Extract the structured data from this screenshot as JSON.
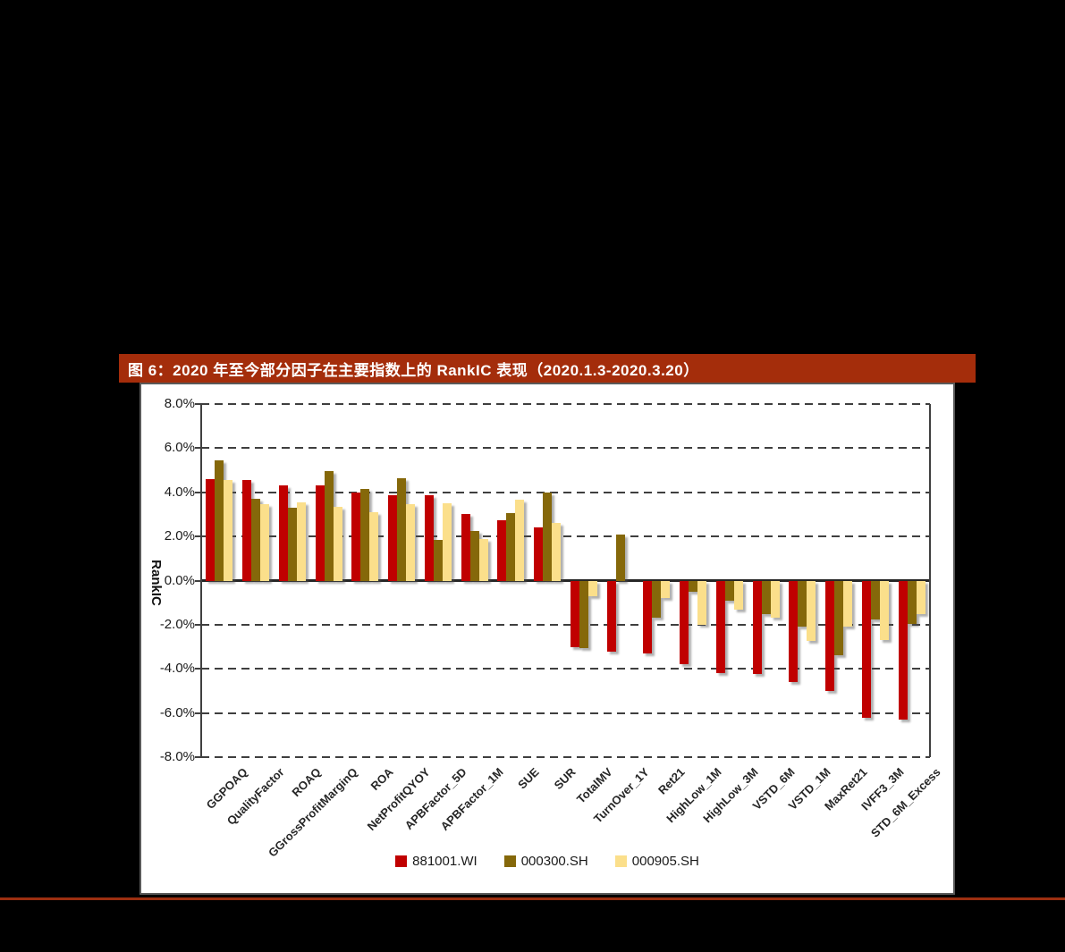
{
  "figure": {
    "title": "图 6：2020 年至今部分因子在主要指数上的 RankIC 表现（2020.1.3-2020.3.20）",
    "title_bar_color": "#A42D0B",
    "bottom_rule_color": "#9C2F10",
    "panel_background": "#FFFFFF",
    "page_background": "#000000"
  },
  "chart_data": {
    "type": "bar",
    "title": "图 6：2020 年至今部分因子在主要指数上的 RankIC 表现（2020.1.3-2020.3.20）",
    "xlabel": "",
    "ylabel": "RankIC",
    "ylim": [
      -8,
      8
    ],
    "yticks_percent": [
      8,
      6,
      4,
      2,
      0,
      -2,
      -4,
      -6,
      -8
    ],
    "ytick_labels": [
      "8.0%",
      "6.0%",
      "4.0%",
      "2.0%",
      "0.0%",
      "-2.0%",
      "-4.0%",
      "-6.0%",
      "-8.0%"
    ],
    "grid": "dashed-horizontal",
    "legend_position": "bottom",
    "unit": "percent",
    "categories": [
      "GGPOAQ",
      "QualityFactor",
      "ROAQ",
      "GGrossProfitMarginQ",
      "ROA",
      "NetProfitQYOY",
      "APBFactor_5D",
      "APBFactor_1M",
      "SUE",
      "SUR",
      "TotalMV",
      "TurnOver_1Y",
      "Ret21",
      "HighLow_1M",
      "HighLow_3M",
      "VSTD_6M",
      "VSTD_1M",
      "MaxRet21",
      "IVFF3_3M",
      "STD_6M_Excess"
    ],
    "series": [
      {
        "name": "881001.WI",
        "color": "#C00000",
        "values": [
          4.6,
          4.55,
          4.3,
          4.3,
          4.0,
          3.85,
          3.85,
          3.0,
          2.75,
          2.4,
          -3.0,
          -3.2,
          -3.3,
          -3.8,
          -4.2,
          -4.25,
          -4.6,
          -5.0,
          -6.2,
          -6.3
        ]
      },
      {
        "name": "000300.SH",
        "color": "#85680A",
        "values": [
          5.45,
          3.7,
          3.3,
          4.95,
          4.15,
          4.65,
          1.85,
          2.25,
          3.05,
          4.0,
          -3.05,
          2.1,
          -1.7,
          -0.5,
          -0.9,
          -1.5,
          -2.1,
          -3.4,
          -1.75,
          -1.95
        ]
      },
      {
        "name": "000905.SH",
        "color": "#FBDF8B",
        "values": [
          4.55,
          3.45,
          3.55,
          3.35,
          3.1,
          3.45,
          3.5,
          1.9,
          3.65,
          2.6,
          -0.7,
          0.0,
          -0.8,
          -2.0,
          -1.3,
          -1.7,
          -2.75,
          -2.1,
          -2.7,
          -1.5
        ]
      }
    ]
  }
}
